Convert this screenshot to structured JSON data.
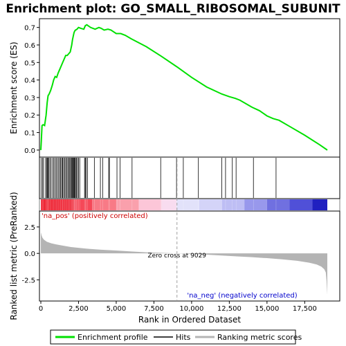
{
  "chart_data": {
    "type": "line",
    "title": "Enrichment plot: GO_SMALL_RIBOSOMAL_SUBUNIT",
    "top_panel": {
      "ylabel": "Enrichment score (ES)",
      "ylim": [
        -0.04,
        0.75
      ],
      "yticks": [
        0.0,
        0.1,
        0.2,
        0.3,
        0.4,
        0.5,
        0.6,
        0.7
      ],
      "ytick_labels": [
        "0.0",
        "0.1",
        "0.2",
        "0.3",
        "0.4",
        "0.5",
        "0.6",
        "0.7"
      ],
      "es_curve": {
        "x": [
          0,
          30,
          80,
          150,
          250,
          350,
          420,
          480,
          550,
          650,
          760,
          850,
          950,
          1050,
          1150,
          1250,
          1350,
          1450,
          1550,
          1650,
          1750,
          1850,
          1950,
          2000,
          2050,
          2100,
          2150,
          2200,
          2250,
          2300,
          2400,
          2500,
          2650,
          2850,
          2950,
          3050,
          3300,
          3600,
          3850,
          4000,
          4200,
          4450,
          4650,
          5000,
          5300,
          5600,
          6000,
          7000,
          8000,
          9029,
          10000,
          11000,
          12000,
          12500,
          12900,
          13200,
          14000,
          14500,
          15000,
          15400,
          15600,
          15800,
          16500,
          17500,
          18500,
          19000
        ],
        "y": [
          0.0,
          0.05,
          0.14,
          0.145,
          0.14,
          0.2,
          0.27,
          0.31,
          0.32,
          0.34,
          0.37,
          0.4,
          0.42,
          0.415,
          0.44,
          0.46,
          0.48,
          0.5,
          0.52,
          0.54,
          0.54,
          0.55,
          0.56,
          0.58,
          0.6,
          0.63,
          0.65,
          0.67,
          0.68,
          0.685,
          0.69,
          0.7,
          0.695,
          0.69,
          0.71,
          0.715,
          0.7,
          0.69,
          0.7,
          0.695,
          0.685,
          0.69,
          0.685,
          0.665,
          0.665,
          0.655,
          0.635,
          0.59,
          0.535,
          0.475,
          0.415,
          0.36,
          0.32,
          0.305,
          0.295,
          0.285,
          0.245,
          0.225,
          0.195,
          0.18,
          0.175,
          0.17,
          0.135,
          0.085,
          0.03,
          0.0
        ]
      },
      "legend_series": "Enrichment profile"
    },
    "hits": {
      "name": "Hits",
      "x": [
        20,
        120,
        180,
        320,
        380,
        430,
        470,
        520,
        600,
        680,
        780,
        860,
        940,
        1020,
        1100,
        1180,
        1260,
        1320,
        1390,
        1450,
        1510,
        1580,
        1650,
        1720,
        1790,
        1860,
        1920,
        1980,
        2030,
        2080,
        2120,
        2170,
        2210,
        2250,
        2300,
        2360,
        2430,
        2500,
        2580,
        2900,
        2950,
        3000,
        3100,
        3550,
        3950,
        4100,
        4500,
        4550,
        5050,
        5250,
        6050,
        7950,
        9000,
        9450,
        10450,
        12000,
        12250,
        12700,
        12950,
        14100,
        15600
      ]
    },
    "bottom_panel": {
      "ylabel": "Ranked list metric (PreRanked)",
      "xlabel": "Rank in Ordered Dataset",
      "ylim": [
        -4.5,
        4.0
      ],
      "yticks": [
        -2.5,
        0.0,
        2.5
      ],
      "ytick_labels": [
        "-2.5",
        "0.0",
        "2.5"
      ],
      "xticks": [
        0,
        2500,
        5000,
        7500,
        10000,
        12500,
        15000,
        17500
      ],
      "xtick_labels": [
        "0",
        "2,500",
        "5,000",
        "7,500",
        "10,000",
        "12,500",
        "15,000",
        "17,500"
      ],
      "metric_curve": {
        "x": [
          0,
          50,
          100,
          200,
          400,
          700,
          1000,
          1500,
          2000,
          3000,
          4000,
          5000,
          6000,
          7000,
          8000,
          9029,
          10000,
          11000,
          12000,
          13000,
          14000,
          15000,
          16000,
          17000,
          17800,
          18300,
          18600,
          18800,
          18900,
          18950,
          19000
        ],
        "y": [
          2.0,
          1.7,
          1.5,
          1.3,
          1.1,
          0.95,
          0.85,
          0.72,
          0.6,
          0.45,
          0.35,
          0.27,
          0.18,
          0.1,
          0.05,
          0.0,
          -0.05,
          -0.12,
          -0.2,
          -0.28,
          -0.36,
          -0.45,
          -0.56,
          -0.7,
          -0.88,
          -1.05,
          -1.25,
          -1.5,
          -1.8,
          -2.6,
          -3.9
        ]
      },
      "zero_cross_rank": 9029,
      "zero_cross_label": "Zero cross at 9029",
      "pos_label": "'na_pos' (positively correlated)",
      "neg_label": "'na_neg' (negatively correlated)",
      "legend_series": "Ranking metric scores"
    },
    "x_max": 19000,
    "colors": {
      "es_line": "#00e000",
      "hit_line": "#000000",
      "metric_fill": "#b4b4b4",
      "pos_label": "#cc0000",
      "neg_label": "#0000cc",
      "zero_line": "#a0a0a0"
    },
    "legend": [
      "Enrichment profile",
      "Hits",
      "Ranking metric scores"
    ],
    "heatmap_bands": [
      {
        "from": 0,
        "to": 2200,
        "color": "#ee2030"
      },
      {
        "from": 2200,
        "to": 3400,
        "color": "#f54858"
      },
      {
        "from": 3400,
        "to": 5000,
        "color": "#f87a86"
      },
      {
        "from": 5000,
        "to": 6500,
        "color": "#faa0ac"
      },
      {
        "from": 6500,
        "to": 8000,
        "color": "#fcc6d8"
      },
      {
        "from": 8000,
        "to": 9000,
        "color": "#f8dcef"
      },
      {
        "from": 9000,
        "to": 10500,
        "color": "#e2e2fa"
      },
      {
        "from": 10500,
        "to": 12000,
        "color": "#d4d4f8"
      },
      {
        "from": 12000,
        "to": 13500,
        "color": "#bebef4"
      },
      {
        "from": 13500,
        "to": 15000,
        "color": "#9898ec"
      },
      {
        "from": 15000,
        "to": 16500,
        "color": "#7070e0"
      },
      {
        "from": 16500,
        "to": 18000,
        "color": "#5050d8"
      },
      {
        "from": 18000,
        "to": 19000,
        "color": "#2020c0"
      }
    ]
  }
}
